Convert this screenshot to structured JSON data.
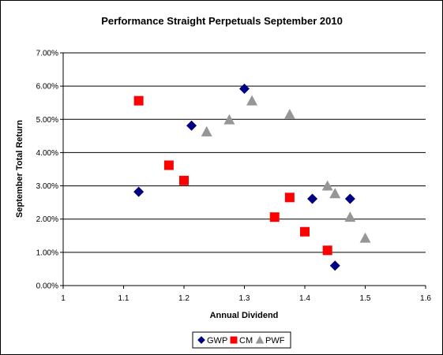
{
  "chart_data": {
    "type": "scatter",
    "title": "Performance Straight Perpetuals September 2010",
    "xlabel": "Annual Dividend",
    "ylabel": "September Total Return",
    "xlim": [
      1,
      1.6
    ],
    "ylim": [
      0,
      0.07
    ],
    "x_ticks": [
      "1",
      "1.1",
      "1.2",
      "1.3",
      "1.4",
      "1.5",
      "1.6"
    ],
    "y_ticks": [
      "0.00%",
      "1.00%",
      "2.00%",
      "3.00%",
      "4.00%",
      "5.00%",
      "6.00%",
      "7.00%"
    ],
    "grid": "horizontal",
    "legend_position": "bottom",
    "series": [
      {
        "name": "GWP",
        "marker": "diamond",
        "color": "#000080",
        "points": [
          {
            "x": 1.125,
            "y": 0.0282
          },
          {
            "x": 1.2125,
            "y": 0.0481
          },
          {
            "x": 1.3,
            "y": 0.0592
          },
          {
            "x": 1.4125,
            "y": 0.0261
          },
          {
            "x": 1.475,
            "y": 0.0261
          },
          {
            "x": 1.45,
            "y": 0.006
          }
        ]
      },
      {
        "name": "CM",
        "marker": "square",
        "color": "#ff0000",
        "points": [
          {
            "x": 1.125,
            "y": 0.0556
          },
          {
            "x": 1.175,
            "y": 0.0362
          },
          {
            "x": 1.2,
            "y": 0.0316
          },
          {
            "x": 1.35,
            "y": 0.0206
          },
          {
            "x": 1.375,
            "y": 0.0265
          },
          {
            "x": 1.4,
            "y": 0.0162
          },
          {
            "x": 1.4375,
            "y": 0.0106
          }
        ]
      },
      {
        "name": "PWF",
        "marker": "triangle",
        "color": "#969696",
        "points": [
          {
            "x": 1.2375,
            "y": 0.0463
          },
          {
            "x": 1.275,
            "y": 0.0499
          },
          {
            "x": 1.3125,
            "y": 0.0556
          },
          {
            "x": 1.375,
            "y": 0.0515
          },
          {
            "x": 1.4375,
            "y": 0.03
          },
          {
            "x": 1.45,
            "y": 0.0277
          },
          {
            "x": 1.475,
            "y": 0.0206
          },
          {
            "x": 1.5,
            "y": 0.0143
          }
        ]
      }
    ]
  }
}
